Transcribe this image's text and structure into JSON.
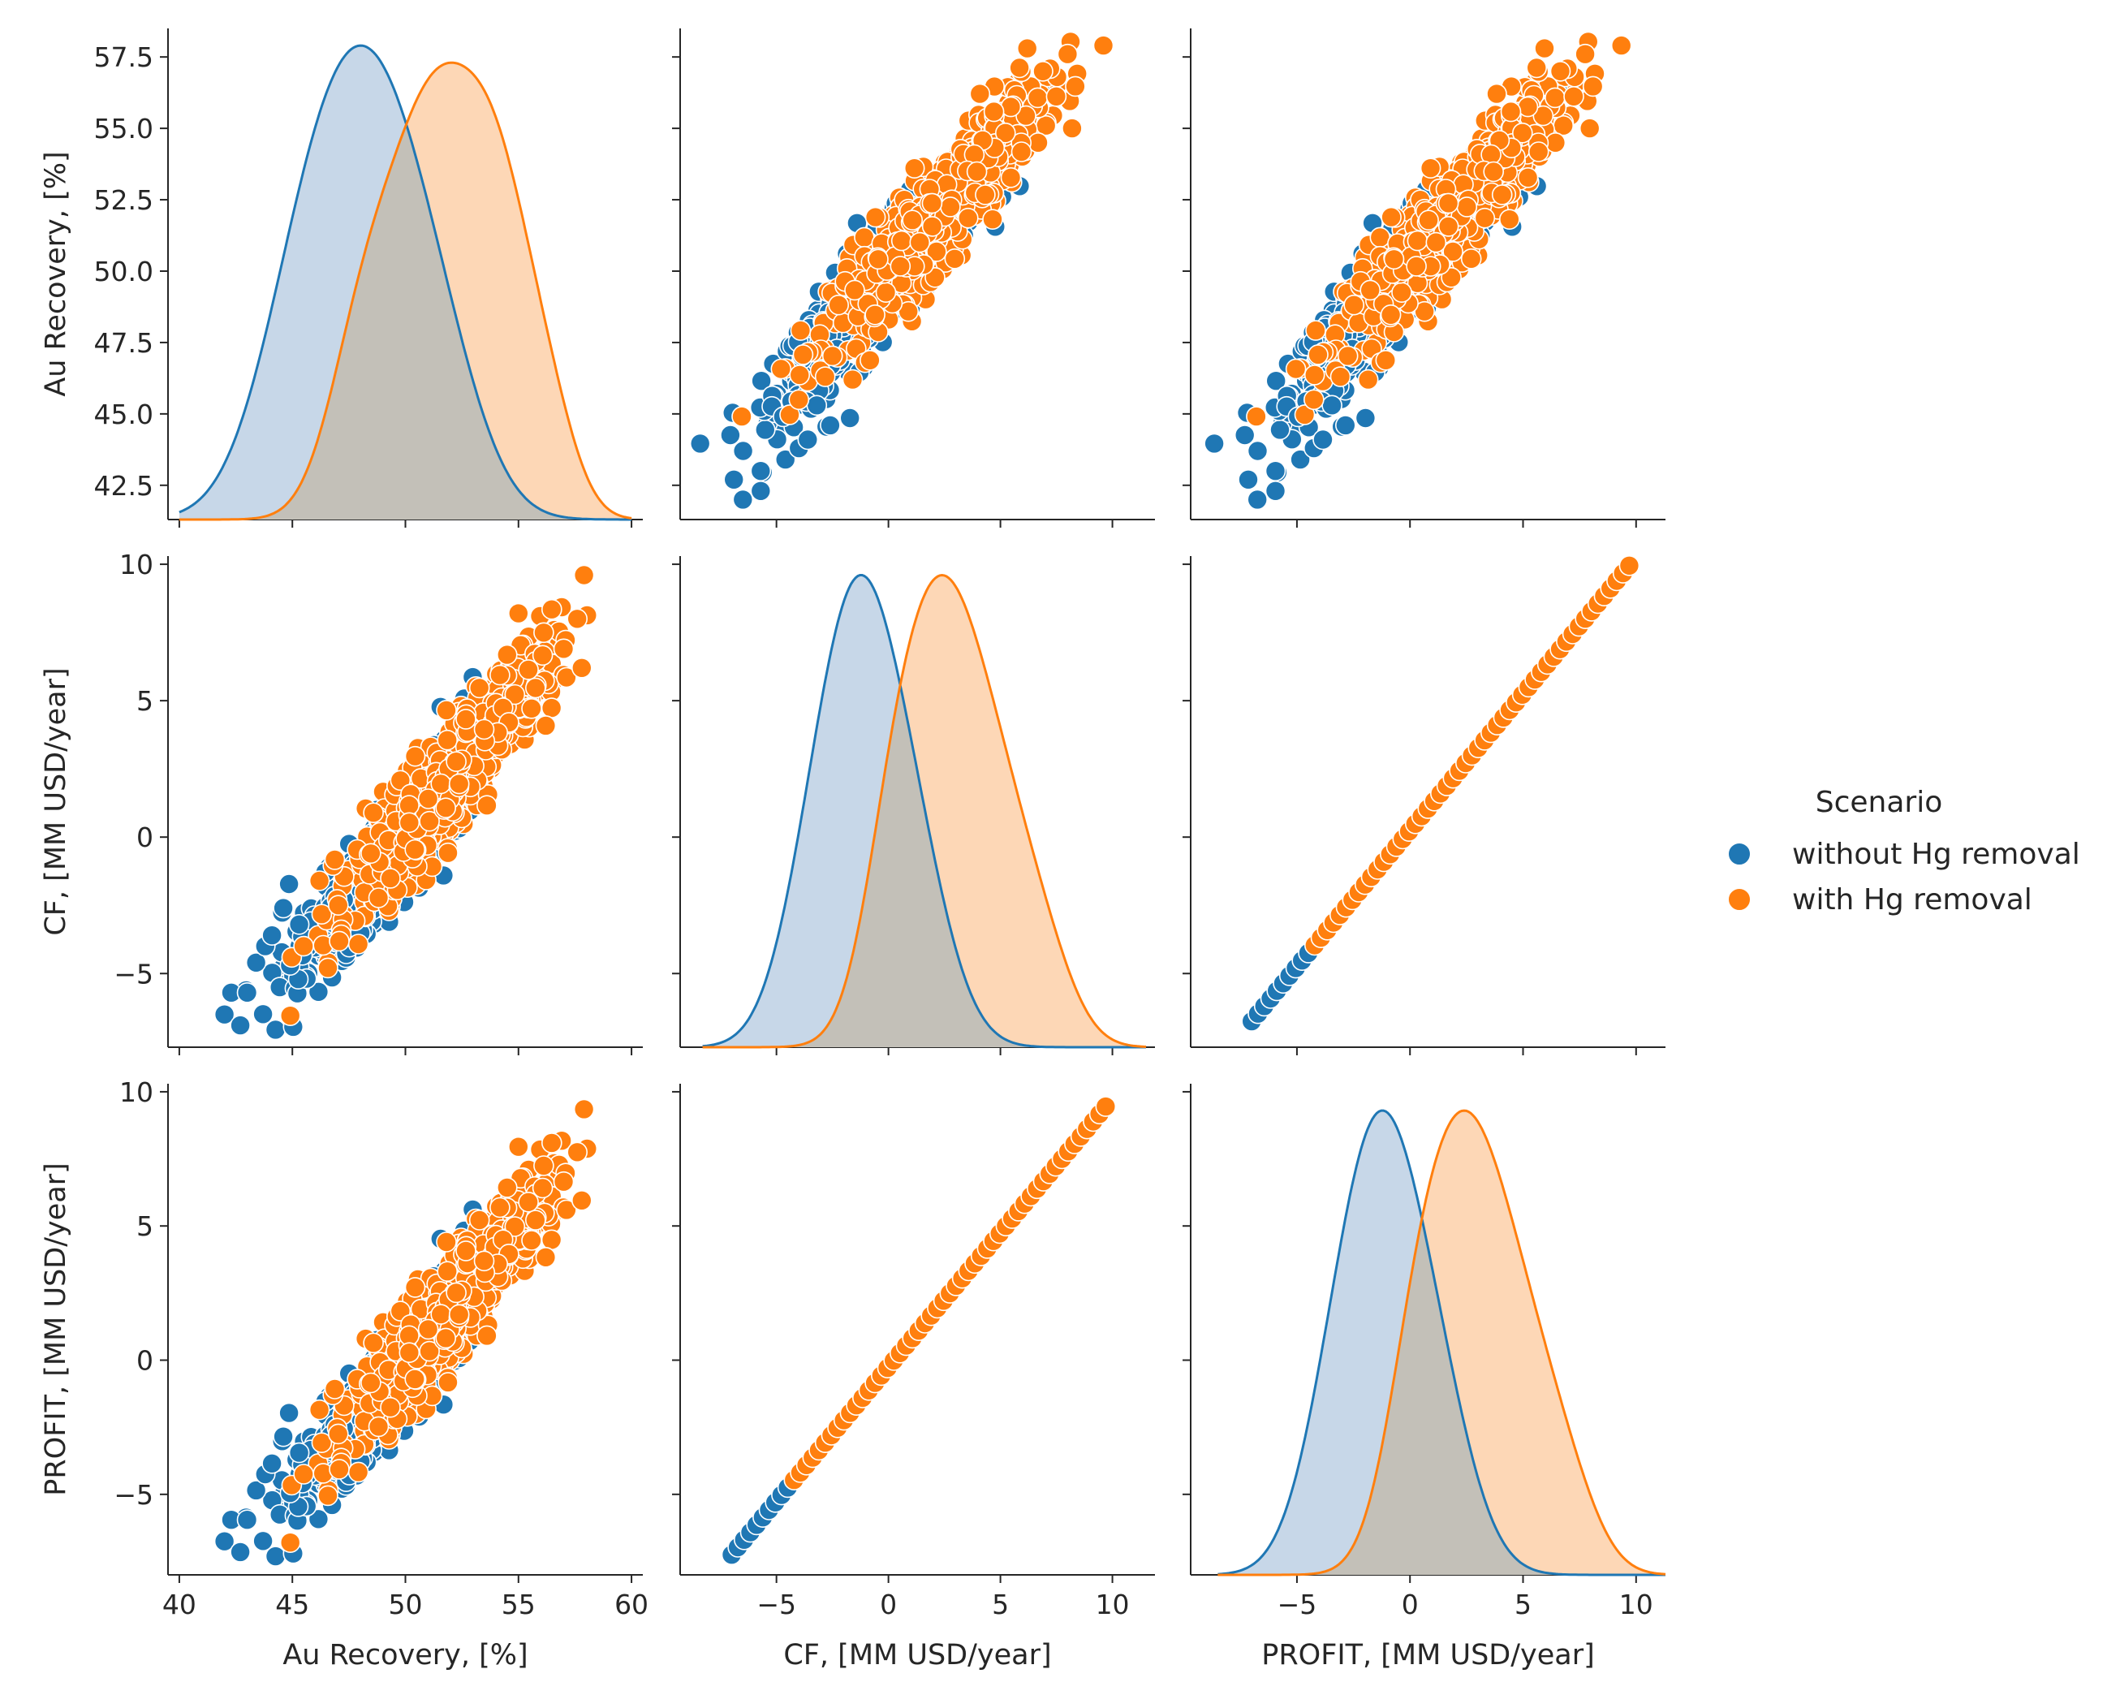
{
  "figure_title": "",
  "legend": {
    "title": "Scenario",
    "placement": "right",
    "entries": [
      {
        "name": "without Hg removal",
        "color": "#1f77b4",
        "fill": "#c7d7e8"
      },
      {
        "name": "with Hg removal",
        "color": "#ff7f0e",
        "fill": "#fdd7b6"
      }
    ]
  },
  "colors": {
    "overlap_fill": "#c3c0b8",
    "axis": "#262626",
    "marker_edge": "#ffffff"
  },
  "chart_data": {
    "type": "scatter",
    "variables": [
      {
        "key": "au",
        "label": "Au Recovery, [%]"
      },
      {
        "key": "cf",
        "label": "CF, [MM USD/year]"
      },
      {
        "key": "profit",
        "label": "PROFIT, [MM USD/year]"
      }
    ],
    "x_axes": [
      {
        "range": [
          39.5,
          60.5
        ],
        "ticks": [
          40,
          45,
          50,
          55,
          60
        ],
        "tick_labels": [
          "40",
          "45",
          "50",
          "55",
          "60"
        ]
      },
      {
        "range": [
          -9.3,
          11.9
        ],
        "ticks": [
          -5,
          0,
          5,
          10
        ],
        "tick_labels": [
          "−5",
          "0",
          "5",
          "10"
        ]
      },
      {
        "range": [
          -9.7,
          11.3
        ],
        "ticks": [
          -5,
          0,
          5,
          10
        ],
        "tick_labels": [
          "−5",
          "0",
          "5",
          "10"
        ]
      }
    ],
    "y_axes": [
      {
        "range": [
          41.3,
          58.5
        ],
        "ticks": [
          42.5,
          45.0,
          47.5,
          50.0,
          52.5,
          55.0,
          57.5
        ],
        "tick_labels": [
          "42.5",
          "45.0",
          "47.5",
          "50.0",
          "52.5",
          "55.0",
          "57.5"
        ]
      },
      {
        "range": [
          -7.7,
          10.3
        ],
        "ticks": [
          -5,
          0,
          5,
          10
        ],
        "tick_labels": [
          "−5",
          "0",
          "5",
          "10"
        ]
      },
      {
        "range": [
          -8.0,
          10.3
        ],
        "ticks": [
          -5,
          0,
          5,
          10
        ],
        "tick_labels": [
          "−5",
          "0",
          "5",
          "10"
        ]
      }
    ],
    "kde": {
      "au": {
        "x_range": [
          40.0,
          60.0
        ],
        "series": [
          {
            "name": "without Hg removal",
            "peaks": [
              [
                45.8,
                2.2,
                0.5
              ],
              [
                49.0,
                2.4,
                0.8
              ],
              [
                52.0,
                1.8,
                0.12
              ]
            ],
            "peak_y": 57.9
          },
          {
            "name": "with Hg removal",
            "peaks": [
              [
                48.0,
                1.5,
                0.25
              ],
              [
                51.2,
                2.0,
                0.7
              ],
              [
                54.3,
                1.6,
                0.45
              ],
              [
                56.5,
                1.2,
                0.1
              ]
            ],
            "peak_y": 57.3
          }
        ]
      },
      "cf": {
        "x_range": [
          -8.3,
          11.5
        ],
        "series": [
          {
            "name": "without Hg removal",
            "peaks": [
              [
                -3.2,
                1.6,
                0.4
              ],
              [
                -1.3,
                1.6,
                0.8
              ],
              [
                0.9,
                1.7,
                0.5
              ]
            ],
            "peak_y": 9.6
          },
          {
            "name": "with Hg removal",
            "peaks": [
              [
                0.0,
                1.3,
                0.2
              ],
              [
                2.1,
                1.8,
                0.8
              ],
              [
                4.8,
                1.7,
                0.4
              ],
              [
                7.0,
                1.4,
                0.12
              ]
            ],
            "peak_y": 9.6
          }
        ]
      },
      "profit": {
        "x_range": [
          -8.5,
          11.3
        ],
        "series": [
          {
            "name": "without Hg removal",
            "peaks": [
              [
                -3.2,
                1.6,
                0.4
              ],
              [
                -1.3,
                1.6,
                0.8
              ],
              [
                0.9,
                1.7,
                0.5
              ]
            ],
            "peak_y": 9.3
          },
          {
            "name": "with Hg removal",
            "peaks": [
              [
                0.0,
                1.3,
                0.2
              ],
              [
                2.1,
                1.8,
                0.8
              ],
              [
                4.8,
                1.7,
                0.4
              ],
              [
                7.0,
                1.4,
                0.12
              ]
            ],
            "peak_y": 9.3
          }
        ]
      }
    },
    "scatter": {
      "au_vs_cf": {
        "without_outliers": [
          [
            42.0,
            -6.5
          ],
          [
            42.3,
            -5.7
          ],
          [
            42.7,
            -6.9
          ],
          [
            43.0,
            -5.7
          ],
          [
            43.4,
            -4.6
          ],
          [
            43.8,
            -4.0
          ],
          [
            44.1,
            -3.6
          ],
          [
            44.6,
            -2.6
          ],
          [
            44.9,
            -4.7
          ],
          [
            45.3,
            -3.2
          ]
        ],
        "with_extremes": [
          [
            45.5,
            -4.0
          ],
          [
            46.2,
            -1.6
          ],
          [
            55.0,
            8.2
          ],
          [
            57.9,
            9.6
          ],
          [
            57.6,
            8.0
          ],
          [
            57.8,
            6.2
          ],
          [
            57.0,
            6.9
          ]
        ]
      },
      "cf_vs_profit_line": {
        "x_range": [
          -7.0,
          9.7
        ],
        "slope": 1.0,
        "intercept": -0.25,
        "with_start": -4.3
      }
    },
    "variable_ranges": {
      "au": {
        "without Hg removal": [
          42.0,
          55.5
        ],
        "with Hg removal": [
          45.0,
          57.9
        ]
      },
      "cf": {
        "without Hg removal": [
          -6.9,
          7.0
        ],
        "with Hg removal": [
          -4.3,
          9.7
        ]
      },
      "profit": {
        "without Hg removal": [
          -7.1,
          6.8
        ],
        "with Hg removal": [
          -4.5,
          9.4
        ]
      }
    }
  }
}
